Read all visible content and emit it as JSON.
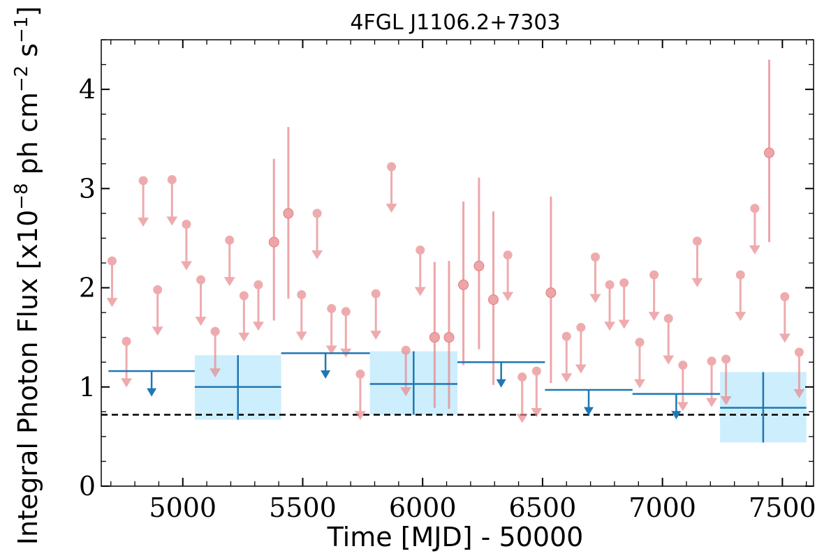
{
  "chart_data": {
    "type": "scatter",
    "title": "4FGL J1106.2+7303",
    "xlabel": "Time [MJD] - 50000",
    "ylabel": "Integral Photon Flux [x10",
    "ylabel_exp1": "−8",
    "ylabel_mid": " ph cm",
    "ylabel_exp2": "−2",
    "ylabel_mid2": " s",
    "ylabel_exp3": "−1",
    "ylabel_end": "]",
    "xlim": [
      4660,
      7630
    ],
    "ylim": [
      0,
      4.5
    ],
    "xticks": [
      5000,
      5500,
      6000,
      6500,
      7000,
      7500
    ],
    "yticks": [
      0,
      1,
      2,
      3,
      4
    ],
    "xtick_labels": [
      "5000",
      "5500",
      "6000",
      "6500",
      "7000",
      "7500"
    ],
    "ytick_labels": [
      "0",
      "1",
      "2",
      "3",
      "4"
    ],
    "reference_level": 0.72,
    "colors": {
      "short_bins": "#e8888d",
      "long_bins": "#1f77b4",
      "band_fill": "#cdeefc",
      "reference": "#000000"
    },
    "short_bins_upper_limits": [
      {
        "x": 4705,
        "y": 2.27
      },
      {
        "x": 4765,
        "y": 1.46
      },
      {
        "x": 4835,
        "y": 3.08
      },
      {
        "x": 4895,
        "y": 1.98
      },
      {
        "x": 4955,
        "y": 3.09
      },
      {
        "x": 5015,
        "y": 2.64
      },
      {
        "x": 5075,
        "y": 2.08
      },
      {
        "x": 5135,
        "y": 1.56
      },
      {
        "x": 5195,
        "y": 2.48
      },
      {
        "x": 5255,
        "y": 1.92
      },
      {
        "x": 5315,
        "y": 2.03
      },
      {
        "x": 5495,
        "y": 1.93
      },
      {
        "x": 5560,
        "y": 2.75
      },
      {
        "x": 5620,
        "y": 1.79
      },
      {
        "x": 5680,
        "y": 1.76
      },
      {
        "x": 5740,
        "y": 1.13
      },
      {
        "x": 5805,
        "y": 1.94
      },
      {
        "x": 5870,
        "y": 3.22
      },
      {
        "x": 5930,
        "y": 1.37
      },
      {
        "x": 5990,
        "y": 2.38
      },
      {
        "x": 6355,
        "y": 2.33
      },
      {
        "x": 6415,
        "y": 1.1
      },
      {
        "x": 6475,
        "y": 1.16
      },
      {
        "x": 6600,
        "y": 1.51
      },
      {
        "x": 6660,
        "y": 1.6
      },
      {
        "x": 6720,
        "y": 2.31
      },
      {
        "x": 6780,
        "y": 2.03
      },
      {
        "x": 6840,
        "y": 2.05
      },
      {
        "x": 6905,
        "y": 1.45
      },
      {
        "x": 6965,
        "y": 2.13
      },
      {
        "x": 7025,
        "y": 1.69
      },
      {
        "x": 7085,
        "y": 1.22
      },
      {
        "x": 7145,
        "y": 2.47
      },
      {
        "x": 7205,
        "y": 1.26
      },
      {
        "x": 7265,
        "y": 1.28
      },
      {
        "x": 7325,
        "y": 2.13
      },
      {
        "x": 7385,
        "y": 2.8
      },
      {
        "x": 7510,
        "y": 1.91
      },
      {
        "x": 7570,
        "y": 1.35
      }
    ],
    "short_bins_detections": [
      {
        "x": 5380,
        "y": 2.46,
        "ylow": 1.67,
        "yhigh": 3.3
      },
      {
        "x": 5440,
        "y": 2.75,
        "ylow": 1.89,
        "yhigh": 3.62
      },
      {
        "x": 6050,
        "y": 1.5,
        "ylow": 0.79,
        "yhigh": 2.26
      },
      {
        "x": 6110,
        "y": 1.5,
        "ylow": 0.78,
        "yhigh": 2.27
      },
      {
        "x": 6170,
        "y": 2.03,
        "ylow": 1.22,
        "yhigh": 2.87
      },
      {
        "x": 6235,
        "y": 2.22,
        "ylow": 1.38,
        "yhigh": 3.11
      },
      {
        "x": 6295,
        "y": 1.88,
        "ylow": 1.02,
        "yhigh": 2.77
      },
      {
        "x": 6535,
        "y": 1.95,
        "ylow": 1.04,
        "yhigh": 2.92
      },
      {
        "x": 7445,
        "y": 3.36,
        "ylow": 2.46,
        "yhigh": 4.3
      }
    ],
    "long_bins_upper_limits": [
      {
        "x0": 4690,
        "x1": 5050,
        "y": 1.16
      },
      {
        "x0": 5410,
        "x1": 5780,
        "y": 1.34
      },
      {
        "x0": 6145,
        "x1": 6510,
        "y": 1.25
      },
      {
        "x0": 6510,
        "x1": 6875,
        "y": 0.97
      },
      {
        "x0": 6875,
        "x1": 7240,
        "y": 0.93
      }
    ],
    "long_bins_detections": [
      {
        "x0": 5050,
        "x1": 5410,
        "y": 1.0,
        "ylow": 0.67,
        "yhigh": 1.32
      },
      {
        "x0": 5780,
        "x1": 6145,
        "y": 1.03,
        "ylow": 0.72,
        "yhigh": 1.36
      },
      {
        "x0": 7240,
        "x1": 7600,
        "y": 0.79,
        "ylow": 0.44,
        "yhigh": 1.15
      }
    ]
  }
}
